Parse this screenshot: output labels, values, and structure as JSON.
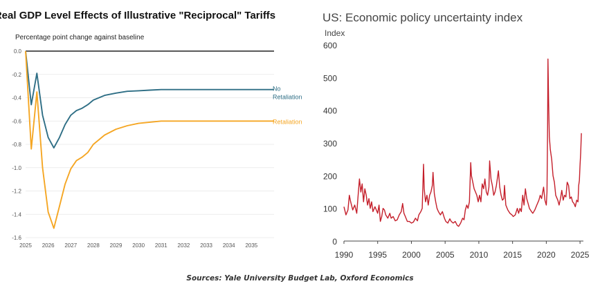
{
  "chart_data": [
    {
      "type": "line",
      "title": "Real GDP Level Effects of Illustrative \"Reciprocal\" Tariffs",
      "subtitle": "Percentage point change against baseline",
      "ylim": [
        -1.6,
        0.0
      ],
      "yticks": [
        "0.0",
        "-0.2",
        "-0.4",
        "-0.6",
        "-0.8",
        "-1.0",
        "-1.2",
        "-1.4",
        "-1.6"
      ],
      "xticks": [
        "2025",
        "2026",
        "2027",
        "2028",
        "2029",
        "2030",
        "2031",
        "2032",
        "2033",
        "2034",
        "2035"
      ],
      "grid": true,
      "series": [
        {
          "name": "No Retaliation",
          "label_lines": [
            "No",
            "Retaliation"
          ],
          "color": "#2e6e85",
          "points": [
            [
              2025.0,
              0.0
            ],
            [
              2025.25,
              -0.46
            ],
            [
              2025.5,
              -0.19
            ],
            [
              2025.75,
              -0.55
            ],
            [
              2026.0,
              -0.74
            ],
            [
              2026.25,
              -0.83
            ],
            [
              2026.5,
              -0.74
            ],
            [
              2026.75,
              -0.63
            ],
            [
              2027.0,
              -0.55
            ],
            [
              2027.25,
              -0.51
            ],
            [
              2027.5,
              -0.49
            ],
            [
              2027.75,
              -0.46
            ],
            [
              2028.0,
              -0.42
            ],
            [
              2028.5,
              -0.38
            ],
            [
              2029.0,
              -0.36
            ],
            [
              2029.5,
              -0.345
            ],
            [
              2030.0,
              -0.34
            ],
            [
              2030.5,
              -0.335
            ],
            [
              2031.0,
              -0.33
            ],
            [
              2032.0,
              -0.33
            ],
            [
              2033.0,
              -0.33
            ],
            [
              2034.0,
              -0.33
            ],
            [
              2035.0,
              -0.33
            ],
            [
              2036.0,
              -0.33
            ]
          ]
        },
        {
          "name": "Retaliation",
          "label_lines": [
            "Retaliation"
          ],
          "color": "#f5a623",
          "points": [
            [
              2025.0,
              0.0
            ],
            [
              2025.25,
              -0.84
            ],
            [
              2025.5,
              -0.35
            ],
            [
              2025.75,
              -1.0
            ],
            [
              2026.0,
              -1.38
            ],
            [
              2026.25,
              -1.52
            ],
            [
              2026.5,
              -1.33
            ],
            [
              2026.75,
              -1.14
            ],
            [
              2027.0,
              -1.01
            ],
            [
              2027.25,
              -0.94
            ],
            [
              2027.5,
              -0.91
            ],
            [
              2027.75,
              -0.87
            ],
            [
              2028.0,
              -0.8
            ],
            [
              2028.5,
              -0.72
            ],
            [
              2029.0,
              -0.67
            ],
            [
              2029.5,
              -0.64
            ],
            [
              2030.0,
              -0.62
            ],
            [
              2030.5,
              -0.61
            ],
            [
              2031.0,
              -0.6
            ],
            [
              2032.0,
              -0.6
            ],
            [
              2033.0,
              -0.6
            ],
            [
              2034.0,
              -0.6
            ],
            [
              2035.0,
              -0.6
            ],
            [
              2036.0,
              -0.6
            ]
          ]
        }
      ]
    },
    {
      "type": "line",
      "title": "US: Economic policy uncertainty index",
      "ylabel": "Index",
      "ylim": [
        0,
        600
      ],
      "yticks": [
        "0",
        "100",
        "200",
        "300",
        "400",
        "500",
        "600"
      ],
      "xlim": [
        1990,
        2025.5
      ],
      "xticks": [
        "1990",
        "1995",
        "2000",
        "2005",
        "2010",
        "2015",
        "2020",
        "2025"
      ],
      "grid": false,
      "series": [
        {
          "color": "#c41e2a",
          "points": [
            [
              1990.0,
              105
            ],
            [
              1990.3,
              80
            ],
            [
              1990.6,
              95
            ],
            [
              1990.8,
              140
            ],
            [
              1991.0,
              120
            ],
            [
              1991.3,
              95
            ],
            [
              1991.6,
              110
            ],
            [
              1991.9,
              85
            ],
            [
              1992.1,
              140
            ],
            [
              1992.3,
              190
            ],
            [
              1992.5,
              150
            ],
            [
              1992.7,
              175
            ],
            [
              1992.9,
              120
            ],
            [
              1993.1,
              160
            ],
            [
              1993.3,
              140
            ],
            [
              1993.5,
              110
            ],
            [
              1993.7,
              130
            ],
            [
              1993.9,
              100
            ],
            [
              1994.1,
              120
            ],
            [
              1994.3,
              90
            ],
            [
              1994.6,
              105
            ],
            [
              1994.8,
              95
            ],
            [
              1995.0,
              85
            ],
            [
              1995.2,
              110
            ],
            [
              1995.4,
              60
            ],
            [
              1995.6,
              75
            ],
            [
              1995.8,
              100
            ],
            [
              1996.0,
              95
            ],
            [
              1996.2,
              80
            ],
            [
              1996.5,
              70
            ],
            [
              1996.8,
              85
            ],
            [
              1997.0,
              70
            ],
            [
              1997.3,
              75
            ],
            [
              1997.6,
              62
            ],
            [
              1997.9,
              65
            ],
            [
              1998.2,
              80
            ],
            [
              1998.5,
              90
            ],
            [
              1998.7,
              115
            ],
            [
              1998.9,
              85
            ],
            [
              1999.1,
              75
            ],
            [
              1999.4,
              60
            ],
            [
              1999.7,
              60
            ],
            [
              2000.0,
              55
            ],
            [
              2000.3,
              58
            ],
            [
              2000.6,
              70
            ],
            [
              2000.9,
              62
            ],
            [
              2001.1,
              80
            ],
            [
              2001.4,
              90
            ],
            [
              2001.6,
              100
            ],
            [
              2001.8,
              235
            ],
            [
              2001.9,
              160
            ],
            [
              2002.1,
              120
            ],
            [
              2002.3,
              140
            ],
            [
              2002.5,
              110
            ],
            [
              2002.7,
              140
            ],
            [
              2002.9,
              150
            ],
            [
              2003.1,
              170
            ],
            [
              2003.2,
              210
            ],
            [
              2003.4,
              145
            ],
            [
              2003.6,
              120
            ],
            [
              2003.8,
              100
            ],
            [
              2004.0,
              90
            ],
            [
              2004.3,
              80
            ],
            [
              2004.6,
              90
            ],
            [
              2004.9,
              70
            ],
            [
              2005.1,
              60
            ],
            [
              2005.4,
              55
            ],
            [
              2005.7,
              68
            ],
            [
              2005.9,
              60
            ],
            [
              2006.2,
              55
            ],
            [
              2006.5,
              60
            ],
            [
              2006.8,
              48
            ],
            [
              2007.0,
              45
            ],
            [
              2007.3,
              55
            ],
            [
              2007.6,
              70
            ],
            [
              2007.8,
              65
            ],
            [
              2008.0,
              95
            ],
            [
              2008.2,
              110
            ],
            [
              2008.4,
              100
            ],
            [
              2008.6,
              120
            ],
            [
              2008.8,
              240
            ],
            [
              2008.9,
              200
            ],
            [
              2009.1,
              180
            ],
            [
              2009.3,
              160
            ],
            [
              2009.5,
              150
            ],
            [
              2009.7,
              140
            ],
            [
              2009.9,
              120
            ],
            [
              2010.1,
              140
            ],
            [
              2010.3,
              120
            ],
            [
              2010.5,
              175
            ],
            [
              2010.7,
              160
            ],
            [
              2010.9,
              190
            ],
            [
              2011.1,
              150
            ],
            [
              2011.3,
              140
            ],
            [
              2011.5,
              165
            ],
            [
              2011.6,
              245
            ],
            [
              2011.8,
              190
            ],
            [
              2012.0,
              170
            ],
            [
              2012.2,
              140
            ],
            [
              2012.4,
              150
            ],
            [
              2012.6,
              170
            ],
            [
              2012.8,
              200
            ],
            [
              2012.9,
              215
            ],
            [
              2013.1,
              165
            ],
            [
              2013.3,
              140
            ],
            [
              2013.5,
              125
            ],
            [
              2013.7,
              130
            ],
            [
              2013.8,
              170
            ],
            [
              2014.0,
              110
            ],
            [
              2014.3,
              95
            ],
            [
              2014.6,
              85
            ],
            [
              2014.9,
              80
            ],
            [
              2015.1,
              75
            ],
            [
              2015.4,
              80
            ],
            [
              2015.7,
              100
            ],
            [
              2015.9,
              85
            ],
            [
              2016.1,
              100
            ],
            [
              2016.3,
              90
            ],
            [
              2016.5,
              140
            ],
            [
              2016.7,
              110
            ],
            [
              2016.9,
              160
            ],
            [
              2017.1,
              130
            ],
            [
              2017.3,
              115
            ],
            [
              2017.5,
              100
            ],
            [
              2017.8,
              90
            ],
            [
              2018.0,
              85
            ],
            [
              2018.3,
              95
            ],
            [
              2018.6,
              110
            ],
            [
              2018.9,
              125
            ],
            [
              2019.1,
              140
            ],
            [
              2019.3,
              130
            ],
            [
              2019.6,
              165
            ],
            [
              2019.8,
              125
            ],
            [
              2020.0,
              110
            ],
            [
              2020.1,
              150
            ],
            [
              2020.2,
              350
            ],
            [
              2020.25,
              557
            ],
            [
              2020.35,
              420
            ],
            [
              2020.45,
              320
            ],
            [
              2020.6,
              280
            ],
            [
              2020.8,
              250
            ],
            [
              2021.0,
              200
            ],
            [
              2021.2,
              180
            ],
            [
              2021.4,
              140
            ],
            [
              2021.7,
              125
            ],
            [
              2021.9,
              110
            ],
            [
              2022.1,
              130
            ],
            [
              2022.3,
              155
            ],
            [
              2022.5,
              125
            ],
            [
              2022.7,
              140
            ],
            [
              2022.9,
              135
            ],
            [
              2023.1,
              180
            ],
            [
              2023.3,
              170
            ],
            [
              2023.5,
              130
            ],
            [
              2023.7,
              135
            ],
            [
              2023.9,
              120
            ],
            [
              2024.1,
              115
            ],
            [
              2024.3,
              105
            ],
            [
              2024.5,
              125
            ],
            [
              2024.7,
              120
            ],
            [
              2024.8,
              170
            ],
            [
              2024.9,
              185
            ],
            [
              2025.0,
              230
            ],
            [
              2025.1,
              270
            ],
            [
              2025.2,
              330
            ]
          ]
        }
      ]
    }
  ],
  "footer": {
    "source": "Sources: Yale University Budget Lab, Oxford Economics"
  }
}
